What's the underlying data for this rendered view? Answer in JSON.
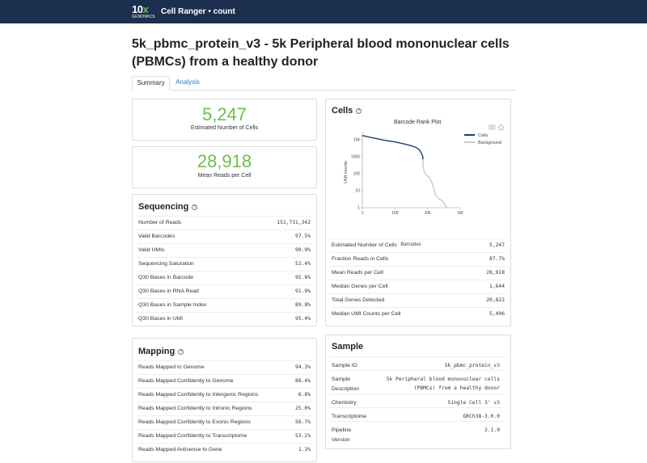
{
  "header": {
    "logo_main": "10",
    "logo_x": "x",
    "logo_sub": "GENOMICS",
    "app_title": "Cell Ranger • count"
  },
  "page_title": "5k_pbmc_protein_v3 - 5k Peripheral blood mononuclear cells (PBMCs) from a healthy donor",
  "tabs": [
    {
      "label": "Summary"
    },
    {
      "label": "Analysis"
    }
  ],
  "metrics": [
    {
      "value": "5,247",
      "label": "Estimated Number of Cells"
    },
    {
      "value": "28,918",
      "label": "Mean Reads per Cell"
    }
  ],
  "sequencing": {
    "title": "Sequencing",
    "rows": [
      {
        "label": "Number of Reads",
        "value": "151,731,342"
      },
      {
        "label": "Valid Barcodes",
        "value": "97.5%"
      },
      {
        "label": "Valid UMIs",
        "value": "99.9%"
      },
      {
        "label": "Sequencing Saturation",
        "value": "52.4%"
      },
      {
        "label": "Q30 Bases in Barcode",
        "value": "95.8%"
      },
      {
        "label": "Q30 Bases in RNA Read",
        "value": "91.9%"
      },
      {
        "label": "Q30 Bases in Sample Index",
        "value": "89.8%"
      },
      {
        "label": "Q30 Bases in UMI",
        "value": "95.4%"
      }
    ]
  },
  "mapping": {
    "title": "Mapping",
    "rows": [
      {
        "label": "Reads Mapped to Genome",
        "value": "94.3%"
      },
      {
        "label": "Reads Mapped Confidently to Genome",
        "value": "88.4%"
      },
      {
        "label": "Reads Mapped Confidently to Intergenic Regions",
        "value": "6.8%"
      },
      {
        "label": "Reads Mapped Confidently to Intronic Regions",
        "value": "25.0%"
      },
      {
        "label": "Reads Mapped Confidently to Exonic Regions",
        "value": "56.7%"
      },
      {
        "label": "Reads Mapped Confidently to Transcriptome",
        "value": "53.2%"
      },
      {
        "label": "Reads Mapped Antisense to Gene",
        "value": "1.3%"
      }
    ]
  },
  "cells": {
    "title": "Cells",
    "rows": [
      {
        "label": "Estimated Number of Cells",
        "value": "5,247"
      },
      {
        "label": "Fraction Reads in Cells",
        "value": "87.7%"
      },
      {
        "label": "Mean Reads per Cell",
        "value": "28,918"
      },
      {
        "label": "Median Genes per Cell",
        "value": "1,644"
      },
      {
        "label": "Total Genes Detected",
        "value": "20,822"
      },
      {
        "label": "Median UMI Counts per Cell",
        "value": "5,496"
      }
    ]
  },
  "sample": {
    "title": "Sample",
    "rows": [
      {
        "label": "Sample ID",
        "value": "5k_pbmc_protein_v3"
      },
      {
        "label": "Sample Description",
        "value": "5k Peripheral blood mononuclear cells (PBMCs) from a healthy donor"
      },
      {
        "label": "Chemistry",
        "value": "Single Cell 3' v3"
      },
      {
        "label": "Transcriptome",
        "value": "GRCh38-3.0.0"
      },
      {
        "label": "Pipeline Version",
        "value": "3.1.0"
      }
    ]
  },
  "chart_data": {
    "type": "line",
    "title": "Barcode Rank Plot",
    "xlabel": "Barcodes",
    "ylabel": "UMI counts",
    "xscale": "log",
    "yscale": "log",
    "xlim": [
      1,
      1000000
    ],
    "ylim": [
      1,
      30000
    ],
    "x_ticks": [
      {
        "value": 1,
        "label": "1"
      },
      {
        "value": 100,
        "label": "100"
      },
      {
        "value": 10000,
        "label": "10k"
      },
      {
        "value": 1000000,
        "label": "1M"
      }
    ],
    "y_ticks": [
      {
        "value": 1,
        "label": "1"
      },
      {
        "value": 10,
        "label": "10"
      },
      {
        "value": 100,
        "label": "100"
      },
      {
        "value": 1000,
        "label": "1000"
      },
      {
        "value": 10000,
        "label": "10k"
      }
    ],
    "legend_position": "top-right",
    "series": [
      {
        "name": "Cells",
        "color": "#1f3d6d",
        "points": [
          [
            1,
            18000
          ],
          [
            3,
            14000
          ],
          [
            10,
            11000
          ],
          [
            30,
            9000
          ],
          [
            100,
            7500
          ],
          [
            300,
            6000
          ],
          [
            1000,
            4500
          ],
          [
            2000,
            3500
          ],
          [
            3000,
            2700
          ],
          [
            4000,
            1800
          ],
          [
            5000,
            1100
          ],
          [
            5247,
            700
          ]
        ]
      },
      {
        "name": "Background",
        "color": "#c8c8c8",
        "points": [
          [
            5247,
            700
          ],
          [
            5400,
            250
          ],
          [
            6000,
            150
          ],
          [
            7000,
            110
          ],
          [
            8000,
            90
          ],
          [
            10000,
            75
          ],
          [
            13000,
            60
          ],
          [
            16000,
            40
          ],
          [
            20000,
            25
          ],
          [
            25000,
            12
          ],
          [
            30000,
            6
          ],
          [
            40000,
            4
          ],
          [
            60000,
            3
          ],
          [
            100000,
            2
          ],
          [
            150000,
            1
          ]
        ]
      }
    ]
  }
}
